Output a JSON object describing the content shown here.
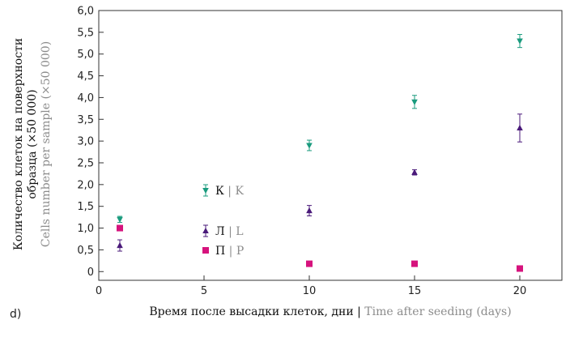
{
  "panel_label": "d)",
  "chart_data": {
    "type": "scatter",
    "x_label_ru": "Время после высадки клеток, дни",
    "x_label_sep": " | ",
    "x_label_en": "Time after seeding (days)",
    "y_label_ru_1": "Количество клеток на поверхности",
    "y_label_ru_2": "образца (×50 000)",
    "y_label_en": "Cells number per sample (×50 000)",
    "xlim": [
      0,
      22
    ],
    "ylim": [
      -0.2,
      6.0
    ],
    "x_ticks": [
      0,
      5,
      10,
      15,
      20
    ],
    "x_tick_labels": [
      "0",
      "5",
      "10",
      "15",
      "20"
    ],
    "y_ticks": [
      0,
      0.5,
      1,
      1.5,
      2,
      2.5,
      3,
      3.5,
      4,
      4.5,
      5,
      5.5,
      6
    ],
    "y_tick_labels": [
      "0",
      "0,5",
      "1,0",
      "1,5",
      "2,0",
      "2,5",
      "3,0",
      "3,5",
      "4,0",
      "4,5",
      "5,0",
      "5,5",
      "6,0"
    ],
    "grid": false,
    "legend_position": "center-left",
    "series": [
      {
        "name": "К",
        "name_en": "K",
        "marker": "triangle-down",
        "color": "#1a9b7e",
        "points": [
          {
            "x": 1,
            "y": 1.2,
            "err": 0.07
          },
          {
            "x": 10,
            "y": 2.9,
            "err": 0.12
          },
          {
            "x": 15,
            "y": 3.9,
            "err": 0.15
          },
          {
            "x": 20,
            "y": 5.3,
            "err": 0.15
          }
        ]
      },
      {
        "name": "Л",
        "name_en": "L",
        "marker": "triangle-up",
        "color": "#4a1a7a",
        "points": [
          {
            "x": 1,
            "y": 0.6,
            "err": 0.13
          },
          {
            "x": 10,
            "y": 1.4,
            "err": 0.12
          },
          {
            "x": 15,
            "y": 2.28,
            "err": 0.06
          },
          {
            "x": 20,
            "y": 3.3,
            "err": 0.32
          }
        ]
      },
      {
        "name": "П",
        "name_en": "P",
        "marker": "square",
        "color": "#d6137d",
        "points": [
          {
            "x": 1,
            "y": 1.0,
            "err": 0
          },
          {
            "x": 10,
            "y": 0.18,
            "err": 0
          },
          {
            "x": 15,
            "y": 0.18,
            "err": 0
          },
          {
            "x": 20,
            "y": 0.07,
            "err": 0
          }
        ]
      }
    ]
  }
}
